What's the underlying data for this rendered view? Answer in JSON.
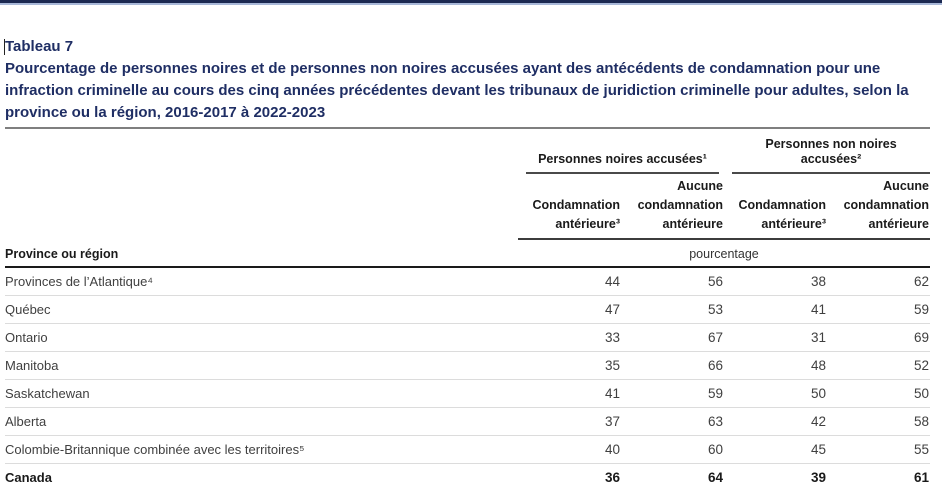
{
  "header": {
    "table_label": "Tableau 7",
    "title": "Pourcentage de personnes noires et de personnes non noires accusées ayant des antécédents de condamnation pour une infraction criminelle au cours des cinq années précédentes devant les tribunaux de juridiction criminelle pour adultes, selon la province ou la région, 2016-2017 à 2022-2023"
  },
  "table": {
    "row_header": "Province ou région",
    "unit_label": "pourcentage",
    "group_headers": [
      "Personnes noires accusées¹",
      "Personnes non noires accusées²"
    ],
    "column_headers": [
      "Condamnation\nantérieure³",
      "Aucune\ncondamnation\nantérieure",
      "Condamnation\nantérieure³",
      "Aucune\ncondamnation\nantérieure"
    ],
    "rows": [
      {
        "label": "Provinces de l’Atlantique⁴",
        "values": [
          44,
          56,
          38,
          62
        ],
        "bold": false
      },
      {
        "label": "Québec",
        "values": [
          47,
          53,
          41,
          59
        ],
        "bold": false
      },
      {
        "label": "Ontario",
        "values": [
          33,
          67,
          31,
          69
        ],
        "bold": false
      },
      {
        "label": "Manitoba",
        "values": [
          35,
          66,
          48,
          52
        ],
        "bold": false
      },
      {
        "label": "Saskatchewan",
        "values": [
          41,
          59,
          50,
          50
        ],
        "bold": false
      },
      {
        "label": "Alberta",
        "values": [
          37,
          63,
          42,
          58
        ],
        "bold": false
      },
      {
        "label": "Colombie-Britannique combinée avec les territoires⁵",
        "values": [
          40,
          60,
          45,
          55
        ],
        "bold": false
      },
      {
        "label": "Canada",
        "values": [
          36,
          64,
          39,
          61
        ],
        "bold": true
      }
    ]
  },
  "colors": {
    "title_navy": "#1f2e64",
    "top_rule_dark": "#1c2951",
    "top_rule_light": "#a8b8d8",
    "table_top_rule": "#7f7f7f",
    "header_underline": "#3c3c3c",
    "row_separator": "#dcdcdc",
    "bottom_rule": "#aeb8c4",
    "body_text": "#404040"
  }
}
